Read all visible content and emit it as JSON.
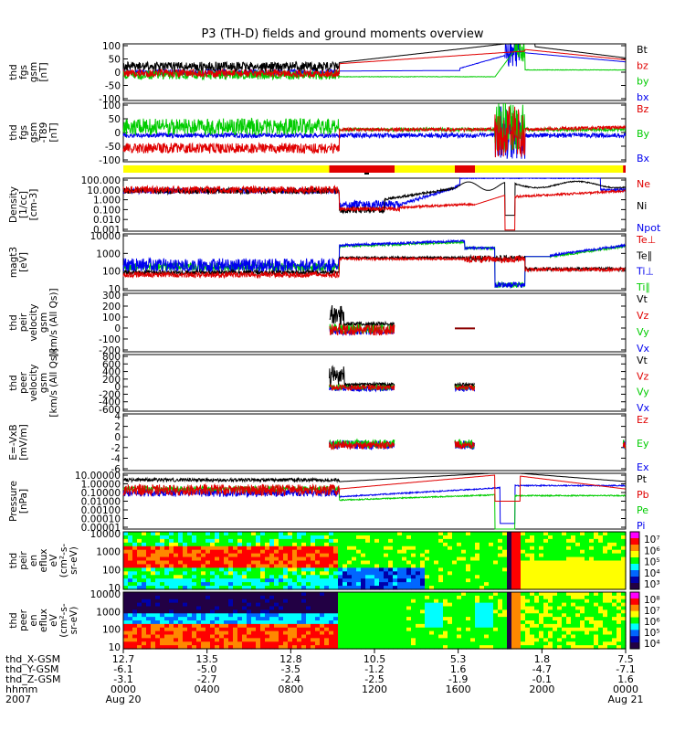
{
  "title": "P3 (TH-D) fields and ground moments overview",
  "chart_data": {
    "type": "line",
    "title": "P3 (TH-D) fields and ground moments overview",
    "panels": [
      {
        "id": "fgs",
        "ylabel": [
          "thd",
          "fgs",
          "gsm",
          "[nT]"
        ],
        "yticks": [
          "100",
          "50",
          "0",
          "-50",
          "-100"
        ],
        "ylim": [
          -100,
          100
        ],
        "scale": "linear",
        "legend": [
          "Bt",
          "bz",
          "by",
          "bx"
        ],
        "legend_colors": [
          "#000000",
          "#e00000",
          "#00cc00",
          "#0000ee"
        ]
      },
      {
        "id": "fgs_t89",
        "ylabel": [
          "thd",
          "fgs",
          "gsm",
          "-T89",
          "[nT]"
        ],
        "yticks": [
          "100",
          "50",
          "0",
          "-50",
          "-100"
        ],
        "ylim": [
          -100,
          100
        ],
        "scale": "linear",
        "legend": [
          "Bz",
          "By",
          "Bx"
        ],
        "legend_colors": [
          "#e00000",
          "#00cc00",
          "#0000ee"
        ]
      },
      {
        "id": "density",
        "ylabel": [
          "Density",
          "[1/cc]",
          "[cm-3]"
        ],
        "yticks": [
          "100.000",
          "10.000",
          "1.000",
          "0.100",
          "0.010",
          "0.001"
        ],
        "ylim": [
          0.001,
          100
        ],
        "scale": "log",
        "legend": [
          "Ne",
          "Ni",
          "Npot"
        ],
        "legend_colors": [
          "#e00000",
          "#000000",
          "#0000ee"
        ]
      },
      {
        "id": "temp",
        "ylabel": [
          "magt3",
          "[eV]"
        ],
        "yticks": [
          "10000",
          "1000",
          "100",
          "10"
        ],
        "ylim": [
          10,
          10000
        ],
        "scale": "log",
        "legend": [
          "Te⊥",
          "Te∥",
          "Ti⊥",
          "Ti∥"
        ],
        "legend_colors": [
          "#e00000",
          "#000000",
          "#0000ee",
          "#00cc00"
        ]
      },
      {
        "id": "peir_vel",
        "ylabel": [
          "thd",
          "peir",
          "velocity",
          "gsm",
          "[km/s (All Qs)]"
        ],
        "yticks": [
          "300",
          "200",
          "100",
          "0",
          "-100",
          "-200"
        ],
        "ylim": [
          -200,
          300
        ],
        "scale": "linear",
        "legend": [
          "Vt",
          "Vz",
          "Vy",
          "Vx"
        ],
        "legend_colors": [
          "#000000",
          "#e00000",
          "#00cc00",
          "#0000ee"
        ]
      },
      {
        "id": "peer_vel",
        "ylabel": [
          "thd",
          "peer",
          "velocity",
          "gsm",
          "[km/s (All Qs)]"
        ],
        "yticks": [
          "800",
          "600",
          "400",
          "200",
          "0",
          "-200",
          "-400",
          "-600"
        ],
        "ylim": [
          -600,
          800
        ],
        "scale": "linear",
        "legend": [
          "Vt",
          "Vz",
          "Vy",
          "Vx"
        ],
        "legend_colors": [
          "#000000",
          "#e00000",
          "#00cc00",
          "#0000ee"
        ]
      },
      {
        "id": "efield",
        "ylabel": [
          "E=-VxB",
          "[mV/m]"
        ],
        "yticks": [
          "4",
          "2",
          "0",
          "-2",
          "-4",
          "-6"
        ],
        "ylim": [
          -6,
          4
        ],
        "scale": "linear",
        "legend": [
          "Ez",
          "Ey",
          "Ex"
        ],
        "legend_colors": [
          "#e00000",
          "#00cc00",
          "#0000ee"
        ]
      },
      {
        "id": "pressure",
        "ylabel": [
          "Pressure",
          "[nPa]"
        ],
        "yticks": [
          "10.00000",
          "1.00000",
          "0.10000",
          "0.01000",
          "0.00100",
          "0.00010",
          "0.00001"
        ],
        "ylim": [
          1e-05,
          10
        ],
        "scale": "log",
        "legend": [
          "Pt",
          "Pb",
          "Pe",
          "Pi"
        ],
        "legend_colors": [
          "#000000",
          "#e00000",
          "#00cc00",
          "#0000ee"
        ]
      },
      {
        "id": "peir_spec",
        "type": "heatmap",
        "ylabel": [
          "thd",
          "peir",
          "en",
          "eflux",
          "eV",
          "(cm²-s-",
          "sr-eV)"
        ],
        "yticks": [
          "10000",
          "1000",
          "100",
          "10"
        ],
        "scale": "log",
        "colorbar": [
          "10⁷",
          "10⁶",
          "10⁵",
          "10⁴",
          "10³"
        ]
      },
      {
        "id": "peer_spec",
        "type": "heatmap",
        "ylabel": [
          "thd",
          "peer",
          "en",
          "eflux",
          "eV",
          "(cm²-s-",
          "sr-eV)"
        ],
        "yticks": [
          "10000",
          "1000",
          "100",
          "10"
        ],
        "scale": "log",
        "colorbar": [
          "10⁸",
          "10⁷",
          "10⁶",
          "10⁵",
          "10⁴"
        ]
      }
    ],
    "x_axis": {
      "row_labels": [
        "thd_X-GSM",
        "thd_Y-GSM",
        "thd_Z-GSM",
        "hhmm",
        "2007"
      ],
      "ticks": [
        {
          "x": "12.7",
          "y": "-6.1",
          "z": "-3.1",
          "t": "0000",
          "d": "Aug 20"
        },
        {
          "x": "13.5",
          "y": "-5.0",
          "z": "-2.7",
          "t": "0400",
          "d": ""
        },
        {
          "x": "12.8",
          "y": "-3.5",
          "z": "-2.4",
          "t": "0800",
          "d": ""
        },
        {
          "x": "10.5",
          "y": "-1.2",
          "z": "-2.5",
          "t": "1200",
          "d": ""
        },
        {
          "x": "5.3",
          "y": "1.6",
          "z": "-1.9",
          "t": "1600",
          "d": ""
        },
        {
          "x": "1.8",
          "y": "-4.7",
          "z": "-0.1",
          "t": "2000",
          "d": ""
        },
        {
          "x": "7.5",
          "y": "-7.1",
          "z": "1.6",
          "t": "0000",
          "d": "Aug 21"
        }
      ]
    }
  }
}
